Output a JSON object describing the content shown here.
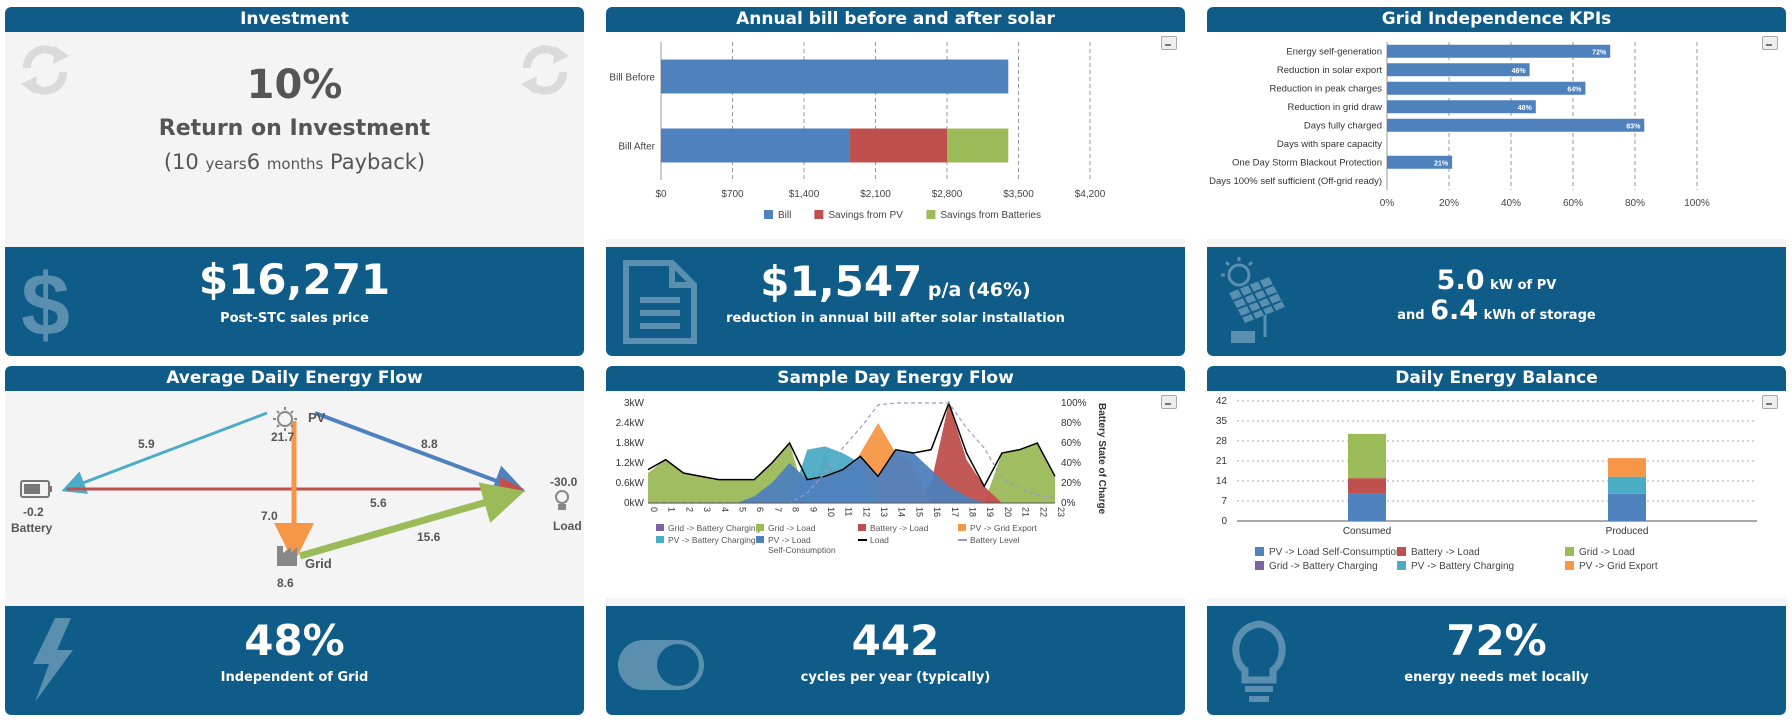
{
  "investment": {
    "title": "Investment",
    "roi_value": "10%",
    "roi_label": "Return on Investment",
    "payback_open": "(10",
    "payback_years_unit": "years",
    "payback_months": "6",
    "payback_months_unit": "months",
    "payback_close": "Payback)",
    "price": "$16,271",
    "price_label": "Post-STC sales price",
    "colors": {
      "header": "#0e5c87",
      "icon_faint": "#d9d9d9"
    }
  },
  "annual_bill": {
    "title": "Annual bill before and after solar",
    "reduction_value": "$1,547",
    "reduction_suffix": "p/a (46%)",
    "reduction_label": "reduction in annual bill after solar installation"
  },
  "grid_kpis": {
    "title": "Grid Independence KPIs",
    "pv_value": "5.0",
    "pv_unit": "kW of PV",
    "and_label": "and",
    "storage_value": "6.4",
    "storage_unit": "kWh of storage"
  },
  "avg_flow": {
    "title": "Average Daily Energy Flow",
    "nodes": {
      "pv_label": "PV",
      "pv_value": "21.7",
      "battery_label": "Battery",
      "battery_value": "-0.2",
      "load_label": "Load",
      "load_value": "-30.0",
      "grid_label": "Grid",
      "grid_value": "8.6"
    },
    "flows": {
      "pv_to_battery": "5.9",
      "pv_to_load": "8.8",
      "battery_to_load": "5.6",
      "pv_to_grid": "7.0",
      "grid_to_load": "15.6"
    },
    "independent_value": "48%",
    "independent_label": "Independent of Grid"
  },
  "sample_day": {
    "title": "Sample Day Energy Flow",
    "cycles_value": "442",
    "cycles_label": "cycles per year (typically)"
  },
  "daily_balance": {
    "title": "Daily Energy Balance",
    "local_value": "72%",
    "local_label": "energy needs met locally"
  },
  "chart_data": [
    {
      "id": "annual_bill",
      "type": "bar",
      "orientation": "horizontal",
      "stacked": true,
      "categories": [
        "Bill Before",
        "Bill After"
      ],
      "series": [
        {
          "name": "Bill",
          "color": "#4f81bd",
          "values": [
            3400,
            1850
          ]
        },
        {
          "name": "Savings from PV",
          "color": "#c0504d",
          "values": [
            0,
            950
          ]
        },
        {
          "name": "Savings from Batteries",
          "color": "#9bbb59",
          "values": [
            0,
            600
          ]
        }
      ],
      "x_ticks": [
        "$0",
        "$700",
        "$1,400",
        "$2,100",
        "$2,800",
        "$3,500",
        "$4,200"
      ],
      "xlim": [
        0,
        4200
      ],
      "grid": true,
      "legend": "bottom"
    },
    {
      "id": "grid_kpis",
      "type": "bar",
      "orientation": "horizontal",
      "categories": [
        "Energy self-generation",
        "Reduction in solar export",
        "Reduction in peak charges",
        "Reduction in grid draw",
        "Days fully charged",
        "Days with spare capacity",
        "One Day Storm Blackout Protection",
        "Days 100% self sufficient (Off-grid ready)"
      ],
      "values": [
        72,
        46,
        64,
        48,
        83,
        0,
        21,
        0
      ],
      "labels": [
        "72%",
        "46%",
        "64%",
        "48%",
        "83%",
        "",
        "21%",
        ""
      ],
      "x_ticks": [
        "0%",
        "20%",
        "40%",
        "60%",
        "80%",
        "100%"
      ],
      "xlim": [
        0,
        100
      ],
      "color": "#4f81bd",
      "grid": true
    },
    {
      "id": "sample_day",
      "type": "area",
      "x": [
        0,
        1,
        2,
        3,
        4,
        5,
        6,
        7,
        8,
        9,
        10,
        11,
        12,
        13,
        14,
        15,
        16,
        17,
        18,
        19,
        20,
        21,
        22,
        23
      ],
      "x_ticks": [
        "0",
        "1",
        "2",
        "3",
        "4",
        "5",
        "6",
        "7",
        "8",
        "9",
        "10",
        "11",
        "12",
        "13",
        "14",
        "15",
        "16",
        "17",
        "18",
        "19",
        "20",
        "21",
        "22",
        "23"
      ],
      "y_ticks": [
        "0kW",
        "0.6kW",
        "1.2kW",
        "1.8kW",
        "2.4kW",
        "3kW"
      ],
      "ylim": [
        0,
        3
      ],
      "y2_ticks": [
        "0%",
        "20%",
        "40%",
        "60%",
        "80%",
        "100%"
      ],
      "y2lim": [
        0,
        100
      ],
      "y2label": "Battery State of Charge",
      "series": [
        {
          "name": "Grid -> Battery Charging",
          "color": "#8064a2",
          "values": [
            0,
            0,
            0,
            0,
            0,
            0,
            0,
            0,
            0,
            0,
            0,
            0,
            0,
            0,
            0,
            0,
            0,
            0,
            0,
            0,
            0,
            0,
            0,
            0
          ]
        },
        {
          "name": "Grid -> Load",
          "color": "#9bbb59",
          "values": [
            0.9,
            1.3,
            0.9,
            0.8,
            0.7,
            0.7,
            0.7,
            1.2,
            1.8,
            0,
            0,
            0,
            0,
            0,
            0,
            0,
            0,
            0,
            0,
            0,
            1.5,
            1.6,
            1.8,
            0.8
          ]
        },
        {
          "name": "Battery -> Load",
          "color": "#c0504d",
          "values": [
            0,
            0,
            0,
            0,
            0,
            0,
            0,
            0,
            0,
            0,
            0,
            0,
            0,
            0,
            0,
            0,
            0.6,
            3.0,
            1.3,
            0.5,
            0,
            0,
            0,
            0
          ]
        },
        {
          "name": "PV -> Grid Export",
          "color": "#f79646",
          "values": [
            0,
            0,
            0,
            0,
            0,
            0,
            0,
            0,
            0,
            0,
            1.5,
            0.4,
            1.5,
            2.4,
            1.5,
            1.2,
            0,
            0,
            0,
            0,
            0,
            0,
            0,
            0
          ]
        },
        {
          "name": "PV -> Battery Charging",
          "color": "#4bacc6",
          "values": [
            0,
            0,
            0,
            0,
            0,
            0,
            0,
            0,
            0,
            1.6,
            1.7,
            1.5,
            1.2,
            0,
            0,
            0,
            0,
            0,
            0,
            0,
            0,
            0,
            0,
            0
          ]
        },
        {
          "name": "PV -> Load Self-Consumption",
          "color": "#4f81bd",
          "values": [
            0,
            0,
            0,
            0,
            0,
            0,
            0.2,
            0.6,
            1.2,
            0.7,
            0.8,
            1.0,
            1.4,
            0.8,
            1.6,
            1.5,
            1.0,
            0.5,
            0.2,
            0,
            0,
            0,
            0,
            0
          ]
        }
      ],
      "load": {
        "name": "Load",
        "color": "#000000",
        "values": [
          1.0,
          1.3,
          0.9,
          0.8,
          0.7,
          0.7,
          0.7,
          1.2,
          1.8,
          0.7,
          0.8,
          1.0,
          1.4,
          0.8,
          1.6,
          1.5,
          1.6,
          3.0,
          1.5,
          0.5,
          1.5,
          1.6,
          1.8,
          0.8
        ]
      },
      "battery_level": {
        "name": "Battery Level",
        "color": "#9999cc",
        "values": [
          0,
          0,
          0,
          0,
          0,
          0,
          0,
          0,
          0,
          10,
          30,
          55,
          75,
          98,
          100,
          100,
          100,
          100,
          75,
          55,
          25,
          15,
          8,
          5
        ]
      },
      "legend": "bottom"
    },
    {
      "id": "daily_balance",
      "type": "bar",
      "stacked": true,
      "categories": [
        "Consumed",
        "Produced"
      ],
      "y_ticks": [
        "0",
        "7",
        "14",
        "21",
        "28",
        "35",
        "42"
      ],
      "ylim": [
        0,
        42
      ],
      "series": [
        {
          "name": "PV -> Load Self-Consumption",
          "color": "#4f81bd",
          "values": [
            9.5,
            9.5
          ]
        },
        {
          "name": "Battery -> Load",
          "color": "#c0504d",
          "values": [
            5.5,
            0
          ]
        },
        {
          "name": "Grid -> Load",
          "color": "#9bbb59",
          "values": [
            15.5,
            0
          ]
        },
        {
          "name": "Grid -> Battery Charging",
          "color": "#8064a2",
          "values": [
            0,
            0
          ]
        },
        {
          "name": "PV -> Battery Charging",
          "color": "#4bacc6",
          "values": [
            0,
            6.0
          ]
        },
        {
          "name": "PV -> Grid Export",
          "color": "#f79646",
          "values": [
            0,
            6.5
          ]
        }
      ],
      "legend": "bottom",
      "grid": true
    }
  ]
}
